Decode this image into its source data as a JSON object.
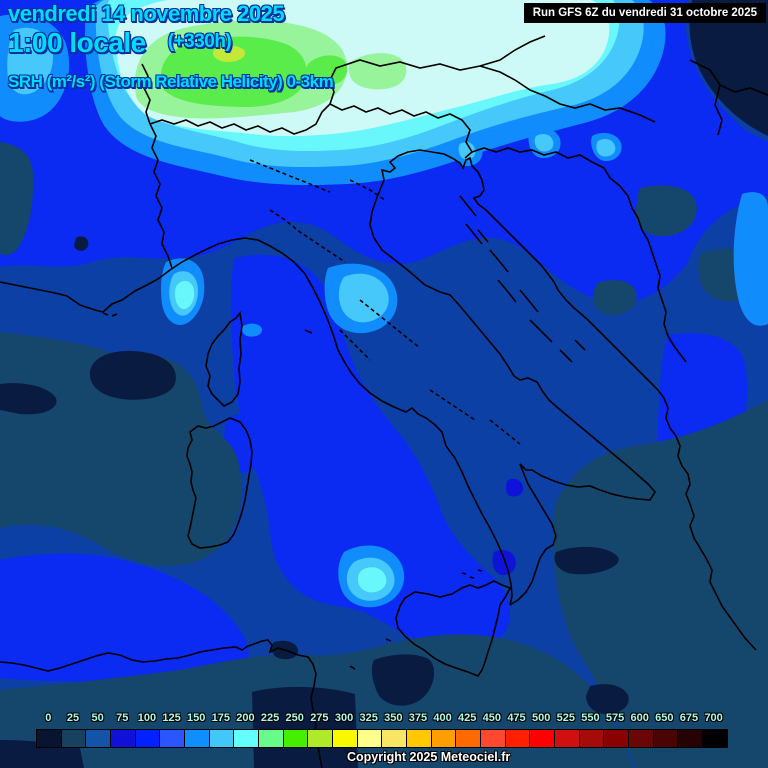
{
  "header": {
    "date_line": "vendredi 14 novembre 2025",
    "time_line": "1:00 locale",
    "forecast_offset": "(+330h)",
    "param_line": "SRH (m²/s²) (Storm Relative Helicity) 0-3km",
    "run_info": "Run GFS 6Z du vendredi 31 octobre 2025"
  },
  "footer": {
    "copyright": "Copyright 2025 Meteociel.fr"
  },
  "colorbar": {
    "unit": "m²/s²",
    "labels": [
      "0",
      "25",
      "50",
      "75",
      "100",
      "125",
      "150",
      "175",
      "200",
      "225",
      "250",
      "275",
      "300",
      "325",
      "350",
      "375",
      "400",
      "425",
      "450",
      "475",
      "500",
      "525",
      "550",
      "575",
      "600",
      "650",
      "675",
      "700"
    ],
    "colors": [
      "#071530",
      "#16425f",
      "#1353a8",
      "#0f10d8",
      "#0022ff",
      "#2a55ff",
      "#0e8eff",
      "#41c8f8",
      "#63ffff",
      "#69fa8c",
      "#44f000",
      "#b0e82a",
      "#f8f800",
      "#ffff8c",
      "#f8e465",
      "#ffc800",
      "#ff9e00",
      "#ff6a00",
      "#ff4830",
      "#ff2000",
      "#ff0000",
      "#d01010",
      "#a50b0b",
      "#8b0000",
      "#6b0606",
      "#4a0404",
      "#260202",
      "#000000"
    ]
  },
  "map": {
    "description": "SRH 0-3km contour field over Italy and central Mediterranean",
    "palette": {
      "medium": "#0c40a5",
      "slate": "#15476c",
      "navy": "#0a1b42",
      "bright": "#0b2af2",
      "deep": "#0f12d8",
      "azure": "#118cfc",
      "sky": "#46c8fa",
      "cyan": "#68f8fc",
      "pale": "#cdfaf6",
      "mint": "#97f49b",
      "green": "#5aec4a",
      "ygreen": "#c2e838",
      "coast": "#000000"
    }
  }
}
